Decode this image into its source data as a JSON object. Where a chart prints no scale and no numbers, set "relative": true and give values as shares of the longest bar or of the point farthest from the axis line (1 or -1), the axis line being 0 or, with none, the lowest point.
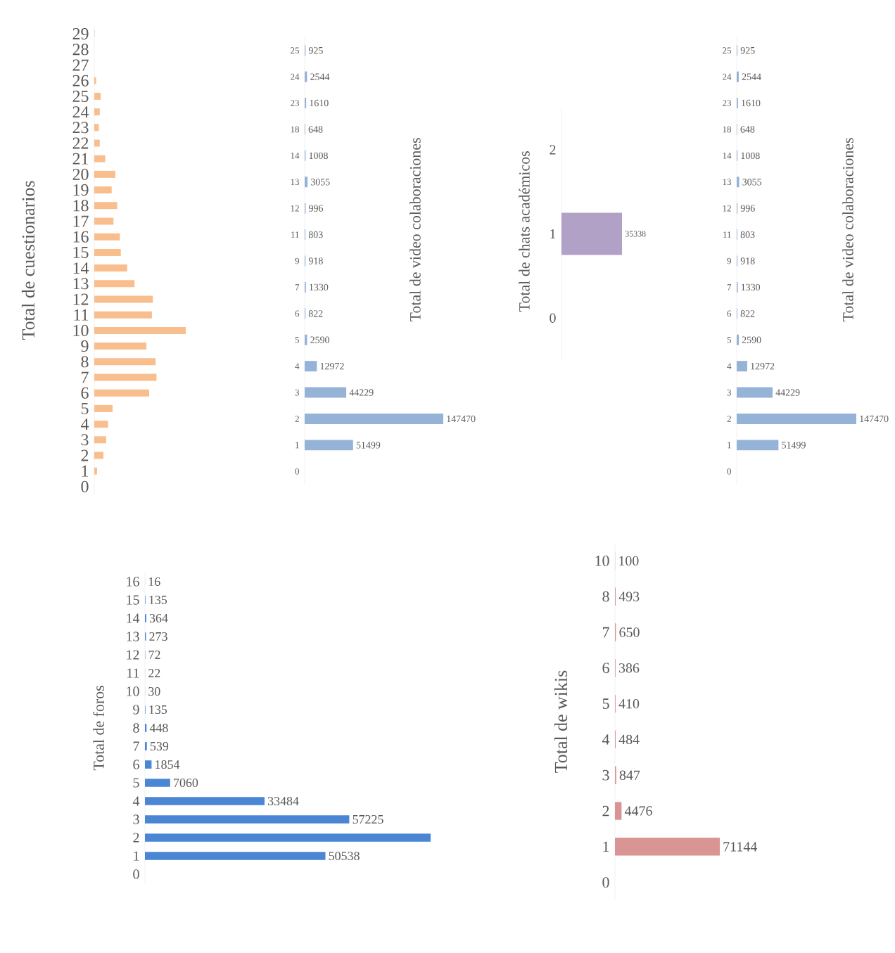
{
  "chart_data": [
    {
      "type": "bar",
      "orientation": "horizontal",
      "relative": true,
      "ylabel": "Total de cuestionarios",
      "color": "#f9be8e",
      "categories": [
        "29",
        "28",
        "27",
        "26",
        "25",
        "24",
        "23",
        "22",
        "21",
        "20",
        "19",
        "18",
        "17",
        "16",
        "15",
        "14",
        "13",
        "12",
        "11",
        "10",
        "9",
        "8",
        "7",
        "6",
        "5",
        "4",
        "3",
        "2",
        "1",
        "0"
      ],
      "values": [
        0.004,
        null,
        null,
        0.02,
        0.07,
        0.06,
        0.05,
        0.06,
        0.12,
        0.23,
        0.19,
        0.25,
        0.21,
        0.28,
        0.29,
        0.36,
        0.44,
        0.64,
        0.63,
        1,
        0.57,
        0.67,
        0.68,
        0.6,
        0.2,
        0.15,
        0.13,
        0.1,
        0.03,
        0
      ]
    },
    {
      "type": "bar",
      "orientation": "horizontal",
      "data_labels": true,
      "ylabel": "Total de video colaboraciones",
      "color": "#95b3d7",
      "categories": [
        "25",
        "24",
        "23",
        "18",
        "14",
        "13",
        "12",
        "11",
        "9",
        "7",
        "6",
        "5",
        "4",
        "3",
        "2",
        "1",
        "0"
      ],
      "values": [
        925,
        2544,
        1610,
        648,
        1008,
        3055,
        996,
        803,
        918,
        1330,
        822,
        2590,
        12972,
        44229,
        147470,
        51499,
        null
      ]
    },
    {
      "type": "bar",
      "orientation": "horizontal",
      "data_labels": true,
      "ylabel": "Total de chats académicos",
      "color": "#b2a1c7",
      "categories": [
        "2",
        "1",
        "0"
      ],
      "values": [
        null,
        35338,
        null
      ]
    },
    {
      "type": "bar",
      "orientation": "horizontal",
      "data_labels": true,
      "ylabel": "Total de video colaboraciones",
      "color": "#95b3d7",
      "categories": [
        "25",
        "24",
        "23",
        "18",
        "14",
        "13",
        "12",
        "11",
        "9",
        "7",
        "6",
        "5",
        "4",
        "3",
        "2",
        "1",
        "0"
      ],
      "values": [
        925,
        2544,
        1610,
        648,
        1008,
        3055,
        996,
        803,
        918,
        1330,
        822,
        2590,
        12972,
        44229,
        147470,
        51499,
        null
      ]
    },
    {
      "type": "bar",
      "orientation": "horizontal",
      "ylabel": "Total de foros",
      "color": "#4a86d4",
      "categories": [
        "16",
        "15",
        "14",
        "13",
        "12",
        "11",
        "10",
        "9",
        "8",
        "7",
        "6",
        "5",
        "4",
        "3",
        "2",
        "1",
        "0"
      ],
      "values": [
        16,
        135,
        364,
        273,
        72,
        22,
        30,
        135,
        448,
        539,
        1854,
        7060,
        33484,
        57225,
        80000,
        50538,
        null
      ],
      "value_labels": [
        "16",
        "135",
        "364",
        "273",
        "72",
        "22",
        "30",
        "135",
        "448",
        "539",
        "1854",
        "7060",
        "33484",
        "57225",
        null,
        "50538",
        null
      ]
    },
    {
      "type": "bar",
      "orientation": "horizontal",
      "data_labels": true,
      "ylabel": "Total de wikis",
      "color": "#d99594",
      "categories": [
        "10",
        "8",
        "7",
        "6",
        "5",
        "4",
        "3",
        "2",
        "1",
        "0"
      ],
      "values": [
        100,
        493,
        650,
        386,
        410,
        484,
        847,
        4476,
        71144,
        null
      ]
    }
  ]
}
